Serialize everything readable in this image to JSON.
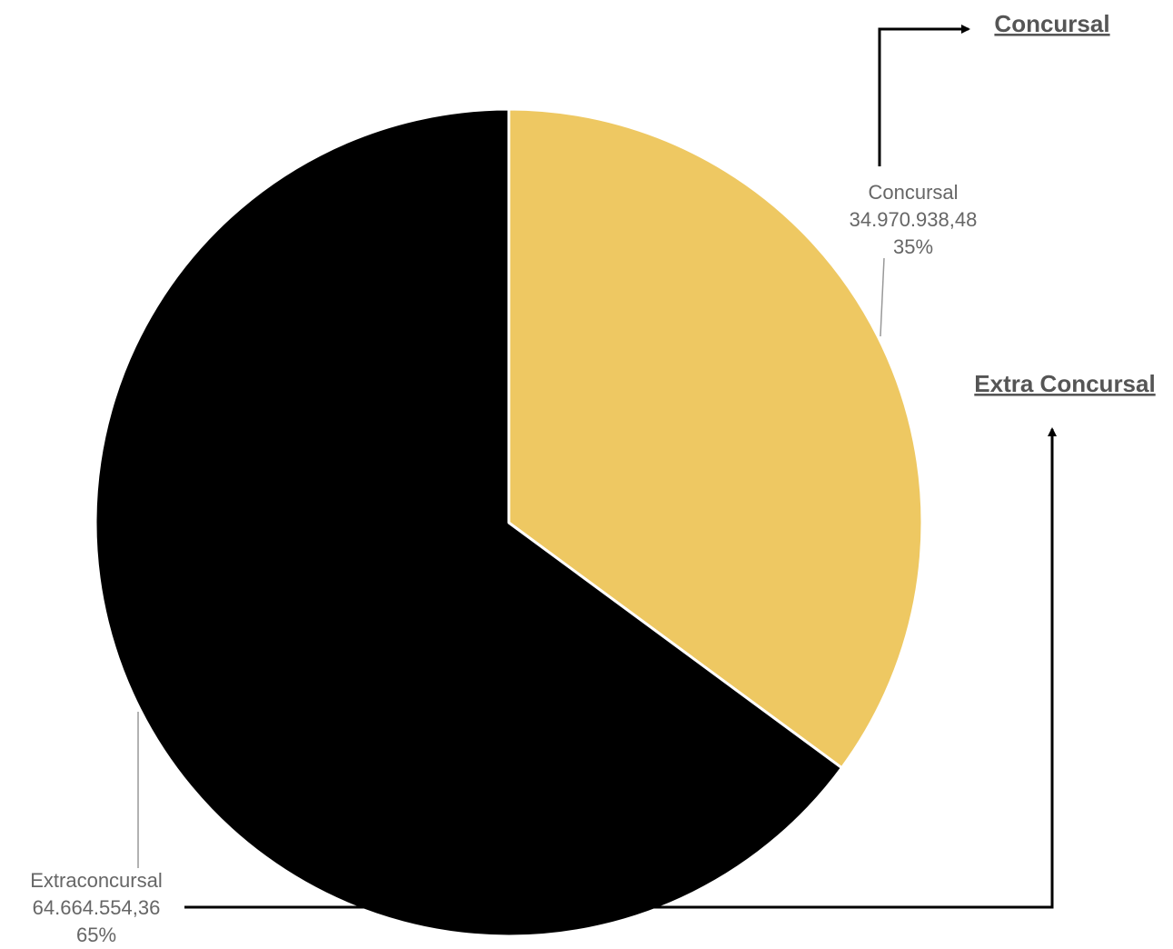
{
  "chart_data": {
    "type": "pie",
    "slices": [
      {
        "category": "Concursal",
        "value": 34970938.48,
        "value_label": "34.970.938,48",
        "percent_label": "35%",
        "color": "#EEC862"
      },
      {
        "category": "Extraconcursal",
        "value": 64664554.36,
        "value_label": "64.664.554,36",
        "percent_label": "65%",
        "color": "#000000"
      }
    ],
    "start_angle": "12 o'clock",
    "direction": "clockwise",
    "slice_border_color": "#ffffff"
  },
  "annotations": {
    "concursal_title": "Concursal",
    "extra_concursal_title": "Extra Concursal"
  }
}
